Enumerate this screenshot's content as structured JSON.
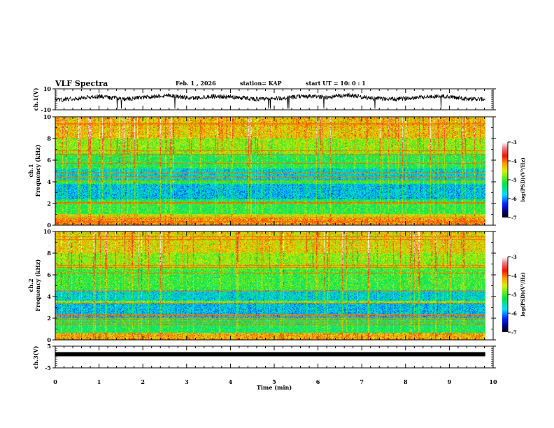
{
  "header": {
    "title": "VLF Spectra",
    "date": "Feb. 1  , 2026",
    "station": "station= KAP",
    "start_ut": "start  UT =   10: 0  : 1"
  },
  "chart_data": [
    {
      "type": "line",
      "name": "ch1-waveform",
      "ylabel": "ch.1(V)",
      "ylim": [
        -10,
        10
      ],
      "y_tick_labels": [
        "10",
        "-10"
      ],
      "xlim": [
        0,
        10
      ],
      "data_end_min": 9.82,
      "series_description_values_approx": [
        0,
        2,
        4,
        1,
        3,
        5,
        2,
        4,
        3,
        1,
        2,
        4,
        3,
        5,
        2,
        1,
        3,
        4,
        2,
        1
      ]
    },
    {
      "type": "heatmap",
      "name": "ch1-spectrogram",
      "ylabel_line1": "ch.1",
      "ylabel_line2": "Frequency  (kHz)",
      "ylim": [
        0,
        10
      ],
      "y_tick_labels": [
        "10",
        "8",
        "6",
        "4",
        "2",
        "0"
      ],
      "xlim": [
        0,
        10
      ],
      "data_end_min": 9.82,
      "colorbar": {
        "label": "log(PSD)(V²/Hz)",
        "range": [
          -7,
          -3
        ],
        "tick_labels": [
          "-3",
          "-4",
          "-5",
          "-6",
          "-7"
        ]
      },
      "band_levels_log_psd": [
        {
          "f_khz": [
            0.0,
            0.6
          ],
          "level": -4.2
        },
        {
          "f_khz": [
            0.6,
            1.0
          ],
          "level": -4.6
        },
        {
          "f_khz": [
            1.0,
            2.0
          ],
          "level": -5.2
        },
        {
          "f_khz": [
            2.0,
            2.4
          ],
          "level": -5.3
        },
        {
          "f_khz": [
            2.4,
            3.8
          ],
          "level": -5.9
        },
        {
          "f_khz": [
            3.8,
            4.2
          ],
          "level": -5.3
        },
        {
          "f_khz": [
            4.2,
            5.2
          ],
          "level": -5.8
        },
        {
          "f_khz": [
            5.2,
            6.5
          ],
          "level": -5.3
        },
        {
          "f_khz": [
            6.5,
            8.0
          ],
          "level": -4.9
        },
        {
          "f_khz": [
            8.0,
            10.0
          ],
          "level": -4.5
        }
      ]
    },
    {
      "type": "heatmap",
      "name": "ch2-spectrogram",
      "ylabel_line1": "ch.2",
      "ylabel_line2": "Frequency  (kHz)",
      "ylim": [
        0,
        10
      ],
      "y_tick_labels": [
        "10",
        "8",
        "6",
        "4",
        "2",
        "0"
      ],
      "xlim": [
        0,
        10
      ],
      "data_end_min": 9.82,
      "colorbar": {
        "label": "log(PSD)(V²/Hz)",
        "range": [
          -7,
          -3
        ],
        "tick_labels": [
          "-3",
          "-4",
          "-5",
          "-6",
          "-7"
        ]
      },
      "band_levels_log_psd": [
        {
          "f_khz": [
            0.0,
            0.6
          ],
          "level": -4.3
        },
        {
          "f_khz": [
            0.6,
            2.0
          ],
          "level": -5.3
        },
        {
          "f_khz": [
            2.0,
            3.4
          ],
          "level": -5.9
        },
        {
          "f_khz": [
            3.4,
            3.6
          ],
          "level": -5.0
        },
        {
          "f_khz": [
            3.6,
            4.6
          ],
          "level": -5.8
        },
        {
          "f_khz": [
            4.6,
            6.5
          ],
          "level": -5.2
        },
        {
          "f_khz": [
            6.5,
            8.0
          ],
          "level": -4.9
        },
        {
          "f_khz": [
            8.0,
            10.0
          ],
          "level": -4.6
        }
      ]
    },
    {
      "type": "line",
      "name": "ch3-waveform",
      "ylabel": "ch.3(V)",
      "ylim": [
        -5,
        5
      ],
      "y_tick_labels": [
        "5",
        "-5"
      ],
      "xlim": [
        0,
        10
      ],
      "data_end_min": 9.82,
      "level_v": 1.3,
      "xlabel": "Time  (min)",
      "x_tick_labels": [
        "0",
        "1",
        "2",
        "3",
        "4",
        "5",
        "6",
        "7",
        "8",
        "9",
        "10"
      ]
    }
  ]
}
